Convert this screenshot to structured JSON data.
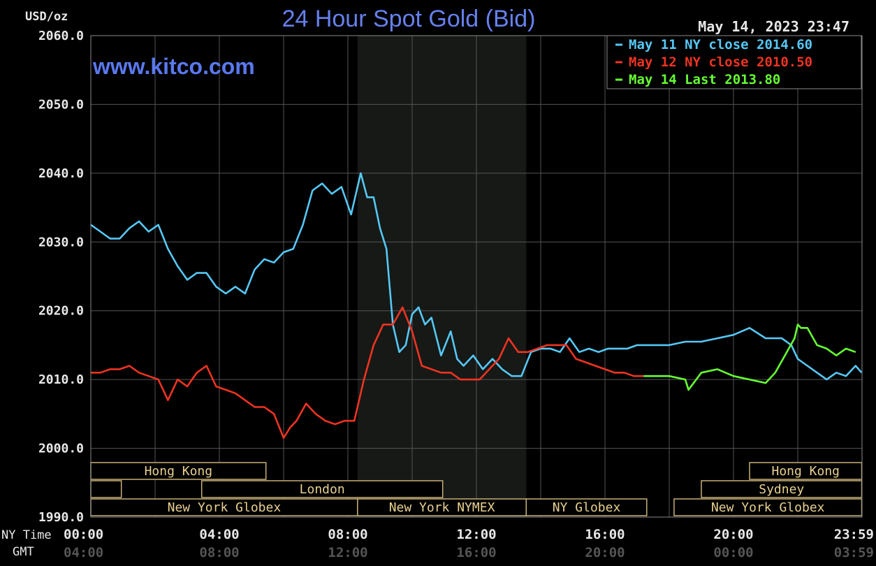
{
  "chart_data": {
    "type": "line",
    "title": "24 Hour Spot Gold (Bid)",
    "ylabel": "USD/oz",
    "watermark": "www.kitco.com",
    "timestamp": "May 14, 2023 23:47",
    "ylim": [
      1990,
      2060
    ],
    "yticks": [
      "2060.0",
      "2050.0",
      "2040.0",
      "2030.0",
      "2020.0",
      "2010.0",
      "2000.0",
      "1990.0"
    ],
    "xlim": [
      0,
      24
    ],
    "xrow_labels": {
      "ny": "NY Time",
      "gmt": "GMT"
    },
    "xticks_ny": [
      "00:00",
      "04:00",
      "08:00",
      "12:00",
      "16:00",
      "20:00",
      "23:59"
    ],
    "xticks_gmt": [
      "04:00",
      "08:00",
      "12:00",
      "16:00",
      "20:00",
      "00:00",
      "03:59"
    ],
    "grid": true,
    "legend_position": "top-right",
    "legend": [
      {
        "label": "May 11 NY close 2014.60",
        "color": "#56c8f5"
      },
      {
        "label": "May 12 NY close 2010.50",
        "color": "#ee3322"
      },
      {
        "label": "May 14 Last 2013.80",
        "color": "#66ff33"
      }
    ],
    "series": [
      {
        "name": "May 11",
        "color": "#56c8f5",
        "x": [
          0,
          0.3,
          0.6,
          0.9,
          1.2,
          1.5,
          1.8,
          2.1,
          2.4,
          2.7,
          3.0,
          3.3,
          3.6,
          3.9,
          4.2,
          4.5,
          4.8,
          5.1,
          5.4,
          5.7,
          6.0,
          6.3,
          6.6,
          6.9,
          7.2,
          7.5,
          7.8,
          8.1,
          8.4,
          8.6,
          8.8,
          9.0,
          9.2,
          9.4,
          9.6,
          9.8,
          10.0,
          10.2,
          10.4,
          10.6,
          10.9,
          11.2,
          11.4,
          11.6,
          11.9,
          12.2,
          12.5,
          12.8,
          13.1,
          13.4,
          13.7,
          14.0,
          14.3,
          14.6,
          14.9,
          15.2,
          15.5,
          15.8,
          16.1,
          16.4,
          16.7,
          17.0,
          17.5,
          18.0,
          18.5,
          19.0,
          19.5,
          20.0,
          20.5,
          21.0,
          21.5,
          21.8,
          22.0,
          22.3,
          22.6,
          22.9,
          23.2,
          23.5,
          23.8,
          23.99
        ],
        "values": [
          2032.5,
          2031.5,
          2030.5,
          2030.5,
          2032,
          2033,
          2031.5,
          2032.5,
          2029,
          2026.5,
          2024.5,
          2025.5,
          2025.5,
          2023.5,
          2022.5,
          2023.5,
          2022.5,
          2026,
          2027.5,
          2027,
          2028.5,
          2029,
          2032.5,
          2037.5,
          2038.5,
          2037,
          2038,
          2034,
          2040,
          2036.5,
          2036.5,
          2032,
          2029,
          2018,
          2014,
          2015,
          2019.5,
          2020.5,
          2018,
          2019,
          2013.5,
          2017,
          2013,
          2012,
          2013.5,
          2011.5,
          2013,
          2011.5,
          2010.5,
          2010.5,
          2014,
          2014.5,
          2014.5,
          2014,
          2016,
          2014,
          2014.5,
          2014,
          2014.5,
          2014.5,
          2014.5,
          2015,
          2015,
          2015,
          2015.5,
          2015.5,
          2016,
          2016.5,
          2017.5,
          2016,
          2016,
          2015,
          2013,
          2012,
          2011,
          2010,
          2011,
          2010.5,
          2012,
          2011
        ]
      },
      {
        "name": "May 12",
        "color": "#ee3322",
        "x": [
          0,
          0.3,
          0.6,
          0.9,
          1.2,
          1.5,
          1.8,
          2.1,
          2.4,
          2.7,
          3.0,
          3.3,
          3.6,
          3.9,
          4.2,
          4.5,
          4.8,
          5.1,
          5.4,
          5.7,
          6.0,
          6.2,
          6.4,
          6.7,
          7.0,
          7.3,
          7.6,
          7.9,
          8.2,
          8.5,
          8.8,
          9.1,
          9.4,
          9.7,
          10.0,
          10.3,
          10.6,
          10.9,
          11.2,
          11.5,
          11.8,
          12.1,
          12.4,
          12.7,
          13.0,
          13.3,
          13.6,
          13.9,
          14.2,
          14.5,
          14.8,
          15.1,
          15.4,
          15.7,
          16.0,
          16.3,
          16.6,
          16.9,
          17.2
        ],
        "values": [
          2011,
          2011,
          2011.5,
          2011.5,
          2012,
          2011,
          2010.5,
          2010,
          2007,
          2010,
          2009,
          2011,
          2012,
          2009,
          2008.5,
          2008,
          2007,
          2006,
          2006,
          2005,
          2001.5,
          2003,
          2004,
          2006.5,
          2005,
          2004,
          2003.5,
          2004,
          2004,
          2010,
          2015,
          2018,
          2018,
          2020.5,
          2017,
          2012,
          2011.5,
          2011,
          2011,
          2010,
          2010,
          2010,
          2011.5,
          2013,
          2016,
          2014,
          2014,
          2014.5,
          2015,
          2015,
          2015,
          2013,
          2012.5,
          2012,
          2011.5,
          2011,
          2011,
          2010.5,
          2010.5
        ]
      },
      {
        "name": "May 14",
        "color": "#66ff33",
        "x": [
          17.2,
          17.5,
          18.0,
          18.5,
          18.6,
          19.0,
          19.5,
          20.0,
          20.5,
          21.0,
          21.3,
          21.6,
          21.9,
          22.0,
          22.1,
          22.3,
          22.6,
          22.9,
          23.2,
          23.5,
          23.8
        ],
        "values": [
          2010.5,
          2010.5,
          2010.5,
          2010,
          2008.5,
          2011,
          2011.5,
          2010.5,
          2010,
          2009.5,
          2011,
          2013.5,
          2016,
          2018,
          2017.5,
          2017.5,
          2015,
          2014.5,
          2013.5,
          2014.5,
          2014
        ]
      }
    ],
    "sessions": [
      {
        "label": "Hong Kong",
        "start": 0.0,
        "end": 5.45,
        "row": 0
      },
      {
        "label": "",
        "start": 0.0,
        "end": 0.95,
        "row": 1
      },
      {
        "label": "London",
        "start": 3.45,
        "end": 10.95,
        "row": 1
      },
      {
        "label": "New York Globex",
        "start": 0.0,
        "end": 8.3,
        "row": 2
      },
      {
        "label": "New York NYMEX",
        "start": 8.3,
        "end": 13.55,
        "row": 2
      },
      {
        "label": "NY Globex",
        "start": 13.55,
        "end": 17.3,
        "row": 2
      },
      {
        "label": "Hong Kong",
        "start": 20.5,
        "end": 23.99,
        "row": 0
      },
      {
        "label": "Sydney",
        "start": 19.0,
        "end": 23.99,
        "row": 1
      },
      {
        "label": "New York Globex",
        "start": 18.15,
        "end": 23.99,
        "row": 2
      }
    ],
    "nymex_shade": [
      8.3,
      13.55
    ]
  }
}
